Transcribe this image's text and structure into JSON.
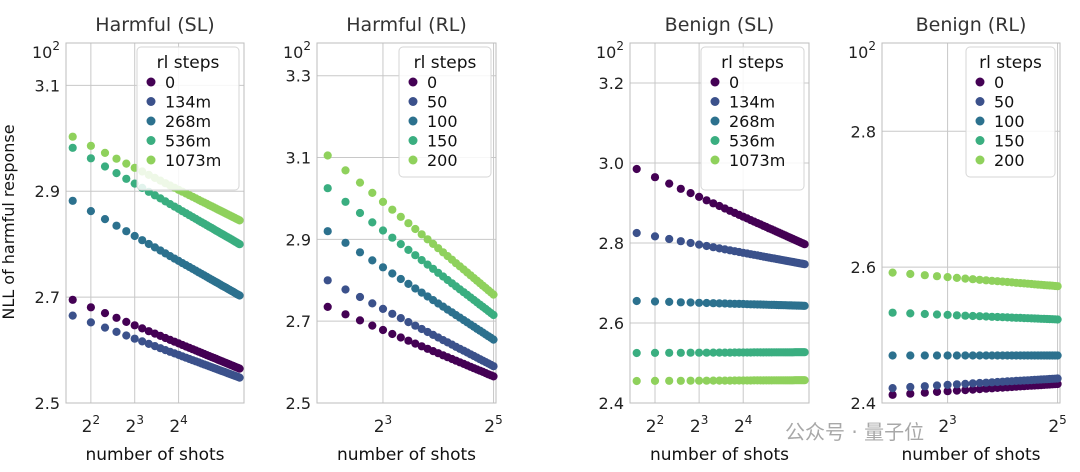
{
  "figure": {
    "ylabel": "NLL of harmful response",
    "xlabel": "number of shots",
    "legend_title": "rl steps",
    "watermark": "公众号 · 量子位"
  },
  "colors": [
    "#440154",
    "#3b518b",
    "#2c718e",
    "#3aae80",
    "#8fd15c"
  ],
  "chart_data": [
    {
      "type": "scatter",
      "title": "Harmful (SL)",
      "xlabel": "number of shots",
      "ylabel": "NLL of harmful response",
      "xscale": "log2",
      "xlim": [
        2.7,
        45
      ],
      "ylim": [
        2.5,
        3.18
      ],
      "yticks": [
        2.5,
        2.7,
        2.9,
        3.1
      ],
      "ytick_labels": [
        "2.5",
        "2.7",
        "2.9",
        "3.1"
      ],
      "xticks": [
        4,
        8,
        16
      ],
      "xtick_labels": [
        "2^2",
        "2^3",
        "2^4"
      ],
      "top_label": "10^2",
      "legend": [
        "0",
        "134m",
        "268m",
        "536m",
        "1073m"
      ],
      "x": [
        3,
        4,
        5,
        6,
        7,
        8,
        9,
        10,
        11,
        12,
        13,
        14,
        15,
        16,
        17,
        18,
        19,
        20,
        21,
        22,
        23,
        24,
        25,
        26,
        27,
        28,
        29,
        30,
        31,
        32,
        33,
        34,
        35,
        36,
        37,
        38,
        39,
        40,
        41,
        42
      ],
      "series": [
        {
          "name": "0",
          "start": 2.695,
          "end": 2.565
        },
        {
          "name": "134m",
          "start": 2.665,
          "end": 2.548
        },
        {
          "name": "268m",
          "start": 2.882,
          "end": 2.703
        },
        {
          "name": "536m",
          "start": 2.982,
          "end": 2.8
        },
        {
          "name": "1073m",
          "start": 3.003,
          "end": 2.845
        }
      ]
    },
    {
      "type": "scatter",
      "title": "Harmful (RL)",
      "xlabel": "number of shots",
      "xscale": "log2",
      "xlim": [
        3.5,
        33
      ],
      "ylim": [
        2.5,
        3.38
      ],
      "yticks": [
        2.5,
        2.7,
        2.9,
        3.1,
        3.3
      ],
      "ytick_labels": [
        "2.5",
        "2.7",
        "2.9",
        "3.1",
        "3.3"
      ],
      "xticks": [
        8,
        32
      ],
      "xtick_labels": [
        "2^3",
        "2^5"
      ],
      "top_label": "10^2",
      "legend": [
        "0",
        "50",
        "100",
        "150",
        "200"
      ],
      "x": [
        4,
        5,
        6,
        7,
        8,
        9,
        10,
        11,
        12,
        13,
        14,
        15,
        16,
        17,
        18,
        19,
        20,
        21,
        22,
        23,
        24,
        25,
        26,
        27,
        28,
        29,
        30,
        31,
        32
      ],
      "series": [
        {
          "name": "0",
          "start": 2.735,
          "end": 2.565
        },
        {
          "name": "50",
          "start": 2.8,
          "end": 2.59
        },
        {
          "name": "100",
          "start": 2.92,
          "end": 2.655
        },
        {
          "name": "150",
          "start": 3.025,
          "end": 2.715
        },
        {
          "name": "200",
          "start": 3.105,
          "end": 2.765
        }
      ]
    },
    {
      "type": "scatter",
      "title": "Benign (SL)",
      "xlabel": "number of shots",
      "xscale": "log2",
      "xlim": [
        2.7,
        45
      ],
      "ylim": [
        2.4,
        3.3
      ],
      "yticks": [
        2.4,
        2.6,
        2.8,
        3.0,
        3.2
      ],
      "ytick_labels": [
        "2.4",
        "2.6",
        "2.8",
        "3.0",
        "3.2"
      ],
      "xticks": [
        4,
        8,
        16
      ],
      "xtick_labels": [
        "2^2",
        "2^3",
        "2^4"
      ],
      "top_label": "10^2",
      "legend": [
        "0",
        "134m",
        "268m",
        "536m",
        "1073m"
      ],
      "x": [
        3,
        4,
        5,
        6,
        7,
        8,
        9,
        10,
        11,
        12,
        13,
        14,
        15,
        16,
        17,
        18,
        19,
        20,
        21,
        22,
        23,
        24,
        25,
        26,
        27,
        28,
        29,
        30,
        31,
        32,
        33,
        34,
        35,
        36,
        37,
        38,
        39,
        40,
        41,
        42
      ],
      "series": [
        {
          "name": "0",
          "start": 2.985,
          "end": 2.797
        },
        {
          "name": "134m",
          "start": 2.825,
          "end": 2.747
        },
        {
          "name": "268m",
          "start": 2.655,
          "end": 2.643
        },
        {
          "name": "536m",
          "start": 2.525,
          "end": 2.527
        },
        {
          "name": "1073m",
          "start": 2.455,
          "end": 2.457
        }
      ]
    },
    {
      "type": "scatter",
      "title": "Benign (RL)",
      "xlabel": "number of shots",
      "xscale": "log2",
      "xlim": [
        3.5,
        33
      ],
      "ylim": [
        2.4,
        2.93
      ],
      "yticks": [
        2.4,
        2.6,
        2.8
      ],
      "ytick_labels": [
        "2.4",
        "2.6",
        "2.8"
      ],
      "xticks": [
        8,
        32
      ],
      "xtick_labels": [
        "2^3",
        "2^5"
      ],
      "top_label": "10^2",
      "legend": [
        "0",
        "50",
        "100",
        "150",
        "200"
      ],
      "x": [
        4,
        5,
        6,
        7,
        8,
        9,
        10,
        11,
        12,
        13,
        14,
        15,
        16,
        17,
        18,
        19,
        20,
        21,
        22,
        23,
        24,
        25,
        26,
        27,
        28,
        29,
        30,
        31,
        32
      ],
      "series": [
        {
          "name": "0",
          "start": 2.412,
          "end": 2.428
        },
        {
          "name": "50",
          "start": 2.422,
          "end": 2.436
        },
        {
          "name": "100",
          "start": 2.47,
          "end": 2.47
        },
        {
          "name": "150",
          "start": 2.533,
          "end": 2.523
        },
        {
          "name": "200",
          "start": 2.592,
          "end": 2.572
        }
      ]
    }
  ]
}
